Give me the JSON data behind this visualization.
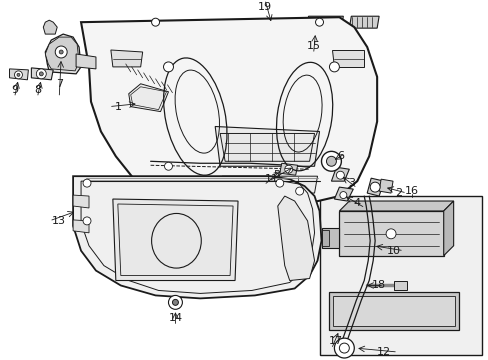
{
  "bg_color": "#ffffff",
  "line_color": "#1a1a1a",
  "fig_width": 4.89,
  "fig_height": 3.6,
  "dpi": 100,
  "gray_inset": "#f0f0f0",
  "gray_light": "#e8e8e8"
}
